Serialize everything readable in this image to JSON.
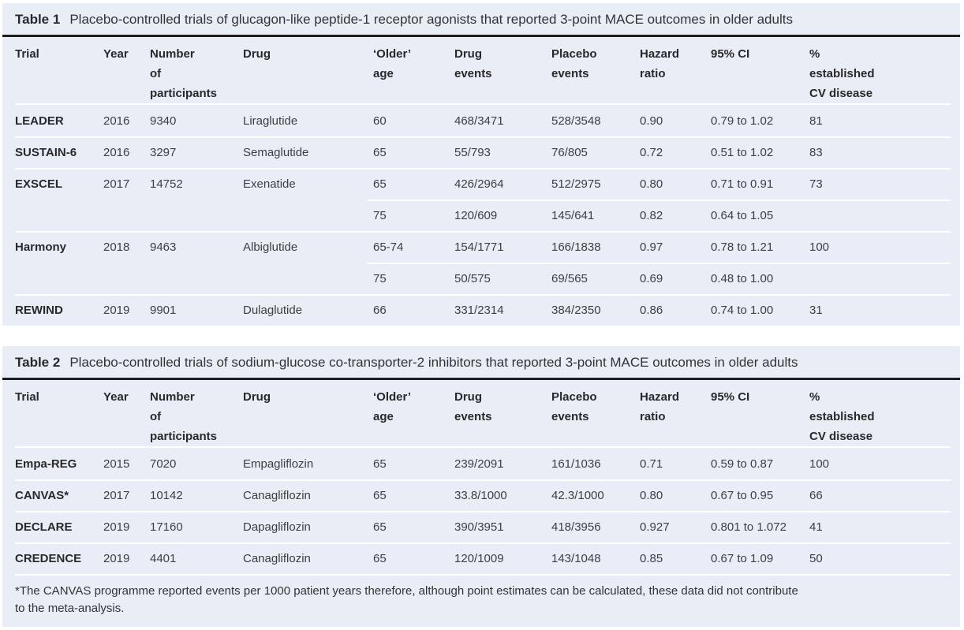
{
  "style": {
    "panel_bg": "#e8edf6",
    "rule_color": "#1d1d1f",
    "separator_color": "#ffffff",
    "text_color": "#3e3e40",
    "bold_text_color": "#29292b",
    "page_bg": "#ffffff"
  },
  "table1": {
    "caption_label": "Table 1",
    "caption_text": "Placebo-controlled trials of glucagon-like peptide-1 receptor agonists that reported 3-point MACE outcomes in older adults",
    "columns": [
      {
        "id": "trial",
        "lines": [
          "Trial"
        ]
      },
      {
        "id": "year",
        "lines": [
          "Year"
        ]
      },
      {
        "id": "participants",
        "lines": [
          "Number",
          "of",
          "participants"
        ]
      },
      {
        "id": "drug",
        "lines": [
          "Drug"
        ]
      },
      {
        "id": "older-age",
        "lines": [
          "‘Older’",
          "age"
        ]
      },
      {
        "id": "drug-events",
        "lines": [
          "Drug",
          "events"
        ]
      },
      {
        "id": "placebo-events",
        "lines": [
          "Placebo",
          "events"
        ]
      },
      {
        "id": "hazard-ratio",
        "lines": [
          "Hazard",
          "ratio"
        ]
      },
      {
        "id": "ci",
        "lines": [
          "95% CI"
        ]
      },
      {
        "id": "cv-disease",
        "lines": [
          "%",
          "established",
          "CV disease"
        ]
      }
    ],
    "rows": [
      {
        "sub": false,
        "cells": [
          "LEADER",
          "2016",
          "9340",
          "Liraglutide",
          "60",
          "468/3471",
          "528/3548",
          "0.90",
          "0.79 to 1.02",
          "81"
        ]
      },
      {
        "sub": false,
        "cells": [
          "SUSTAIN-6",
          "2016",
          "3297",
          "Semaglutide",
          "65",
          "55/793",
          "76/805",
          "0.72",
          "0.51 to 1.02",
          "83"
        ]
      },
      {
        "sub": false,
        "cells": [
          "EXSCEL",
          "2017",
          "14752",
          "Exenatide",
          "65",
          "426/2964",
          "512/2975",
          "0.80",
          "0.71 to 0.91",
          "73"
        ]
      },
      {
        "sub": true,
        "cells": [
          "",
          "",
          "",
          "",
          "75",
          "120/609",
          "145/641",
          "0.82",
          "0.64 to 1.05",
          ""
        ]
      },
      {
        "sub": false,
        "cells": [
          "Harmony",
          "2018",
          "9463",
          "Albiglutide",
          "65-74",
          "154/1771",
          "166/1838",
          "0.97",
          "0.78 to 1.21",
          "100"
        ]
      },
      {
        "sub": true,
        "cells": [
          "",
          "",
          "",
          "",
          "75",
          "50/575",
          "69/565",
          "0.69",
          "0.48 to 1.00",
          ""
        ]
      },
      {
        "sub": false,
        "cells": [
          "REWIND",
          "2019",
          "9901",
          "Dulaglutide",
          "66",
          "331/2314",
          "384/2350",
          "0.86",
          "0.74 to 1.00",
          "31"
        ]
      }
    ]
  },
  "table2": {
    "caption_label": "Table 2",
    "caption_text": "Placebo-controlled trials of sodium-glucose co-transporter-2 inhibitors that reported 3-point MACE outcomes in older adults",
    "columns": [
      {
        "id": "trial",
        "lines": [
          "Trial"
        ]
      },
      {
        "id": "year",
        "lines": [
          "Year"
        ]
      },
      {
        "id": "participants",
        "lines": [
          "Number",
          "of",
          "participants"
        ]
      },
      {
        "id": "drug",
        "lines": [
          "Drug"
        ]
      },
      {
        "id": "older-age",
        "lines": [
          "‘Older’",
          "age"
        ]
      },
      {
        "id": "drug-events",
        "lines": [
          "Drug",
          "events"
        ]
      },
      {
        "id": "placebo-events",
        "lines": [
          "Placebo",
          "events"
        ]
      },
      {
        "id": "hazard-ratio",
        "lines": [
          "Hazard",
          "ratio"
        ]
      },
      {
        "id": "ci",
        "lines": [
          "95% CI"
        ]
      },
      {
        "id": "cv-disease",
        "lines": [
          "%",
          "established",
          "CV disease"
        ]
      }
    ],
    "rows": [
      {
        "sub": false,
        "cells": [
          "Empa-REG",
          "2015",
          "7020",
          "Empagliflozin",
          "65",
          "239/2091",
          "161/1036",
          "0.71",
          "0.59 to 0.87",
          "100"
        ]
      },
      {
        "sub": false,
        "cells": [
          "CANVAS*",
          "2017",
          "10142",
          "Canagliflozin",
          "65",
          "33.8/1000",
          "42.3/1000",
          "0.80",
          "0.67 to 0.95",
          "66"
        ]
      },
      {
        "sub": false,
        "cells": [
          "DECLARE",
          "2019",
          "17160",
          "Dapagliflozin",
          "65",
          "390/3951",
          "418/3956",
          "0.927",
          "0.801 to 1.072",
          "41"
        ]
      },
      {
        "sub": false,
        "cells": [
          "CREDENCE",
          "2019",
          "4401",
          "Canagliflozin",
          "65",
          "120/1009",
          "143/1048",
          "0.85",
          "0.67 to 1.09",
          "50"
        ]
      }
    ],
    "footnote_line1": "*The CANVAS programme reported events per 1000 patient years therefore, although point estimates can be calculated, these data did not contribute",
    "footnote_line2": "to the meta-analysis."
  }
}
